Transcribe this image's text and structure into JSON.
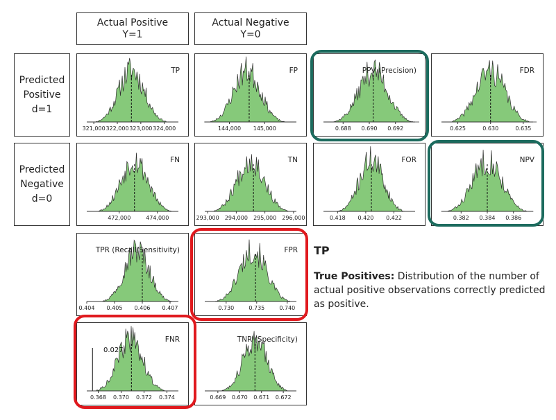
{
  "headers": {
    "actual_positive": [
      "Actual Positive",
      "Y=1"
    ],
    "actual_negative": [
      "Actual Negative",
      "Y=0"
    ]
  },
  "row_labels": {
    "predicted_positive": [
      "Predicted",
      "Positive",
      "d=1"
    ],
    "predicted_negative": [
      "Predicted",
      "Negative",
      "d=0"
    ]
  },
  "info": {
    "title": "TP",
    "term": "True Positives:",
    "description": "Distribution of the number of actual positive observations correctly predicted as positive."
  },
  "colors": {
    "fill": "#86c97a",
    "line": "#333333",
    "highlight_teal": "#1c6b5e",
    "highlight_red": "#e0191e"
  },
  "chart_data": [
    {
      "id": "tp",
      "type": "histogram",
      "title": "TP",
      "xlim": [
        320700,
        324600
      ],
      "ticks": [
        321000,
        322000,
        323000,
        324000
      ],
      "tick_labels": [
        "321,000",
        "322,000",
        "323,000",
        "324,000"
      ],
      "center": 322600,
      "spread": 550,
      "mean_line": 322600,
      "seed": 11
    },
    {
      "id": "fp",
      "type": "histogram",
      "title": "FP",
      "xlim": [
        143300,
        145900
      ],
      "ticks": [
        144000,
        145000
      ],
      "tick_labels": [
        "144,000",
        "145,000"
      ],
      "center": 144500,
      "spread": 380,
      "mean_line": 144560,
      "seed": 23
    },
    {
      "id": "ppv",
      "type": "histogram",
      "title": "PPV (Precision)",
      "xlim": [
        0.6865,
        0.6935
      ],
      "ticks": [
        0.688,
        0.69,
        0.692
      ],
      "tick_labels": [
        "0.688",
        "0.690",
        "0.692"
      ],
      "center": 0.6903,
      "spread": 0.0011,
      "mean_line": 0.6903,
      "seed": 37
    },
    {
      "id": "fdr",
      "type": "histogram",
      "title": "FDR",
      "xlim": [
        0.6225,
        0.6365
      ],
      "ticks": [
        0.625,
        0.63,
        0.635
      ],
      "tick_labels": [
        "0.625",
        "0.630",
        "0.635"
      ],
      "center": 0.63,
      "spread": 0.0022,
      "mean_line": 0.63,
      "seed": 41
    },
    {
      "id": "fn",
      "type": "histogram",
      "title": "FN",
      "xlim": [
        470300,
        475100
      ],
      "ticks": [
        472000,
        474000
      ],
      "tick_labels": [
        "472,000",
        "474,000"
      ],
      "center": 472800,
      "spread": 700,
      "mean_line": 472800,
      "seed": 53
    },
    {
      "id": "tn",
      "type": "histogram",
      "title": "TN",
      "xlim": [
        292900,
        296100
      ],
      "ticks": [
        293000,
        294000,
        295000,
        296000
      ],
      "tick_labels": [
        "293,000",
        "294,000",
        "295,000",
        "296,000"
      ],
      "center": 294500,
      "spread": 480,
      "mean_line": 294600,
      "seed": 67
    },
    {
      "id": "for",
      "type": "histogram",
      "title": "FOR",
      "xlim": [
        0.417,
        0.4235
      ],
      "ticks": [
        0.418,
        0.42,
        0.422
      ],
      "tick_labels": [
        "0.418",
        "0.420",
        "0.422"
      ],
      "center": 0.4204,
      "spread": 0.00085,
      "mean_line": 0.4204,
      "seed": 71
    },
    {
      "id": "npv",
      "type": "histogram",
      "title": "NPV",
      "xlim": [
        0.3805,
        0.3875
      ],
      "ticks": [
        0.382,
        0.384,
        0.386
      ],
      "tick_labels": [
        "0.382",
        "0.384",
        "0.386"
      ],
      "center": 0.384,
      "spread": 0.0011,
      "mean_line": 0.384,
      "seed": 83
    },
    {
      "id": "tpr",
      "type": "histogram",
      "title": "TPR (Recall/Sensitivity)",
      "xlim": [
        0.404,
        0.4073
      ],
      "ticks": [
        0.404,
        0.405,
        0.406,
        0.407
      ],
      "tick_labels": [
        "0.404",
        "0.405",
        "0.406",
        "0.407"
      ],
      "center": 0.4058,
      "spread": 0.00045,
      "mean_line": 0.406,
      "seed": 97
    },
    {
      "id": "fpr",
      "type": "histogram",
      "title": "FPR",
      "xlim": [
        0.7265,
        0.7415
      ],
      "ticks": [
        0.73,
        0.735,
        0.74
      ],
      "tick_labels": [
        "0.730",
        "0.735",
        "0.740"
      ],
      "center": 0.7344,
      "spread": 0.0022,
      "mean_line": 0.7348,
      "seed": 101
    },
    {
      "id": "fnr",
      "type": "histogram",
      "title": "FNR",
      "xlim": [
        0.367,
        0.375
      ],
      "ticks": [
        0.368,
        0.37,
        0.372,
        0.374
      ],
      "tick_labels": [
        "0.368",
        "0.370",
        "0.372",
        "0.374"
      ],
      "center": 0.3708,
      "spread": 0.0011,
      "mean_line": 0.3709,
      "seed": 113,
      "ref_line": 0.3675,
      "annotation": "0.027"
    },
    {
      "id": "tnr",
      "type": "histogram",
      "title": "TNR (Specificity)",
      "xlim": [
        0.6684,
        0.6726
      ],
      "ticks": [
        0.669,
        0.67,
        0.671,
        0.672
      ],
      "tick_labels": [
        "0.669",
        "0.670",
        "0.671",
        "0.672"
      ],
      "center": 0.6707,
      "spread": 0.00055,
      "mean_line": 0.6707,
      "seed": 127
    }
  ]
}
